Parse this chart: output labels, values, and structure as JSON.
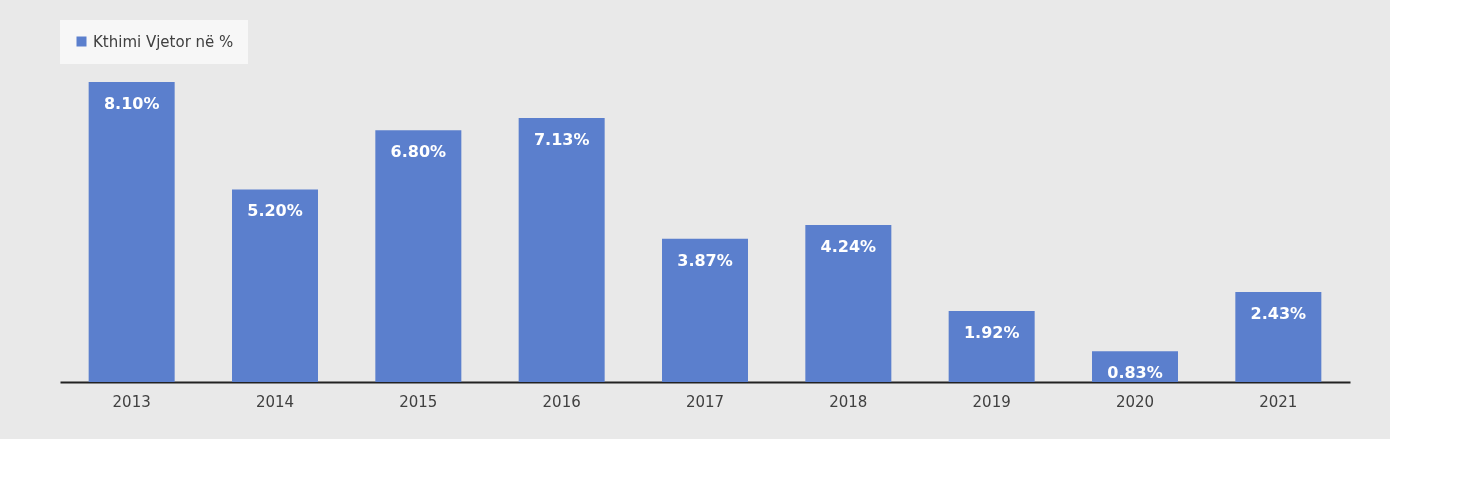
{
  "chart_data": {
    "type": "bar",
    "categories": [
      "2013",
      "2014",
      "2015",
      "2016",
      "2017",
      "2018",
      "2019",
      "2020",
      "2021"
    ],
    "series": [
      {
        "name": "Kthimi Vjetor në %",
        "color": "#5b7fcd",
        "values": [
          8.1,
          5.2,
          6.8,
          7.13,
          3.87,
          4.24,
          1.92,
          0.83,
          2.43
        ],
        "value_labels": [
          "8.10%",
          "5.20%",
          "6.80%",
          "7.13%",
          "3.87%",
          "4.24%",
          "1.92%",
          "0.83%",
          "2.43%"
        ]
      }
    ],
    "legend": "top",
    "grid": false
  }
}
